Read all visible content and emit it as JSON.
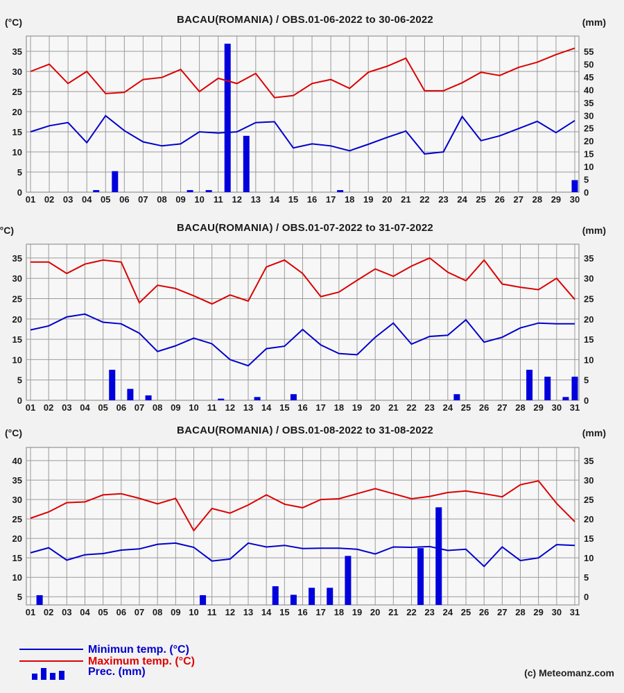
{
  "page": {
    "background": "#f2f2f2",
    "credit": "(c) Meteomanz.com"
  },
  "colors": {
    "max_temp": "#dd0000",
    "min_temp": "#0000cc",
    "precip": "#0000dd",
    "grid": "#9a9a9a",
    "plot_border": "#808080",
    "plot_bg": "#f7f7f7",
    "text": "#1a1a1a"
  },
  "legend": {
    "items": [
      {
        "label": "Minimun temp. (°C)",
        "color": "#0000cc",
        "sample": "line"
      },
      {
        "label": "Maximum temp. (°C)",
        "color": "#dd0000",
        "sample": "line"
      },
      {
        "label": "Prec. (mm)",
        "color": "#0000dd",
        "sample": "bars"
      }
    ]
  },
  "chart_data": [
    {
      "type": "line+bar",
      "title": "BACAU(ROMANIA) / OBS.01-06-2022 to 30-06-2022",
      "unit_left": "(°C)",
      "unit_right": "(mm)",
      "x_tick_labels": [
        "01",
        "02",
        "03",
        "04",
        "05",
        "06",
        "07",
        "08",
        "09",
        "10",
        "11",
        "12",
        "13",
        "14",
        "15",
        "16",
        "17",
        "18",
        "19",
        "20",
        "21",
        "22",
        "23",
        "24",
        "25",
        "26",
        "27",
        "28",
        "29",
        "30"
      ],
      "left_axis": {
        "ticks": [
          0,
          5,
          10,
          15,
          20,
          25,
          30,
          35
        ],
        "min": 0,
        "max": 38.8
      },
      "right_axis": {
        "ticks": [
          0,
          5,
          10,
          15,
          20,
          25,
          30,
          35,
          40,
          45,
          50,
          55
        ],
        "scale": 0.63636,
        "offset": 0
      },
      "series": [
        {
          "name": "Maximum temp. (°C)",
          "type": "line",
          "color": "#dd0000",
          "values": [
            30,
            31.8,
            27,
            30,
            24.5,
            24.8,
            28,
            28.5,
            30.5,
            25,
            28.3,
            27,
            29.5,
            23.5,
            24,
            27,
            28,
            25.8,
            29.8,
            31.3,
            33.3,
            25.2,
            25.2,
            27.2,
            29.8,
            29,
            31,
            32.3,
            34.2,
            35.8
          ]
        },
        {
          "name": "Minimun temp. (°C)",
          "type": "line",
          "color": "#0000cc",
          "values": [
            15,
            16.5,
            17.3,
            12.3,
            19,
            15.3,
            12.5,
            11.5,
            12,
            15,
            14.7,
            15,
            17.3,
            17.5,
            11,
            12,
            11.5,
            10.3,
            11.9,
            13.6,
            15.2,
            9.5,
            10,
            18.8,
            12.8,
            14,
            15.8,
            17.6,
            14.8,
            17.8
          ]
        },
        {
          "name": "Prec. (mm)",
          "type": "bar",
          "axis": "right",
          "color": "#0000dd",
          "values": [
            0,
            0,
            0,
            0.8,
            8.2,
            0,
            0,
            0,
            0.8,
            0.8,
            58,
            22,
            0,
            0,
            0,
            0,
            0.8,
            0,
            0,
            0,
            0,
            0,
            0,
            0,
            0,
            0,
            0,
            0,
            0,
            4.7
          ]
        }
      ]
    },
    {
      "type": "line+bar",
      "title": "BACAU(ROMANIA) / OBS.01-07-2022 to 31-07-2022",
      "unit_left": "(°C)",
      "unit_right": "(mm)",
      "x_tick_labels": [
        "01",
        "02",
        "03",
        "04",
        "05",
        "06",
        "07",
        "08",
        "09",
        "10",
        "11",
        "12",
        "13",
        "14",
        "15",
        "16",
        "17",
        "18",
        "19",
        "20",
        "21",
        "22",
        "23",
        "24",
        "25",
        "26",
        "27",
        "28",
        "29",
        "30",
        "31"
      ],
      "left_axis": {
        "ticks": [
          0,
          5,
          10,
          15,
          20,
          25,
          30,
          35
        ],
        "min": 0,
        "max": 38.4
      },
      "right_axis": {
        "ticks": [
          0,
          5,
          10,
          15,
          20,
          25,
          30,
          35
        ],
        "scale": 1,
        "offset": 0
      },
      "series": [
        {
          "name": "Maximum temp. (°C)",
          "type": "line",
          "color": "#dd0000",
          "values": [
            34,
            34,
            31.2,
            33.5,
            34.5,
            34,
            24,
            28.3,
            27.5,
            25.7,
            23.7,
            25.9,
            24.4,
            32.8,
            34.5,
            31.2,
            25.5,
            26.6,
            29.5,
            32.3,
            30.5,
            33,
            35,
            31.5,
            29.4,
            34.5,
            28.6,
            27.8,
            27.2,
            30,
            24.8
          ]
        },
        {
          "name": "Minimun temp. (°C)",
          "type": "line",
          "color": "#0000cc",
          "values": [
            17.3,
            18.3,
            20.5,
            21.2,
            19.2,
            18.8,
            16.5,
            12,
            13.4,
            15.3,
            13.9,
            10,
            8.5,
            12.7,
            13.3,
            17.4,
            13.6,
            11.5,
            11.2,
            15.5,
            19,
            13.8,
            15.7,
            16,
            19.8,
            14.3,
            15.5,
            17.8,
            19,
            18.8,
            18.8
          ]
        },
        {
          "name": "Prec. (mm)",
          "type": "bar",
          "axis": "right",
          "color": "#0000dd",
          "values": [
            0,
            0,
            0,
            0,
            7.5,
            2.8,
            1.2,
            0,
            0,
            0,
            0.4,
            0,
            0.8,
            0,
            1.5,
            0,
            0,
            0,
            0,
            0,
            0,
            0,
            0,
            1.5,
            0,
            0,
            0,
            7.5,
            5.8,
            0.8,
            5.8
          ]
        }
      ]
    },
    {
      "type": "line+bar",
      "title": "BACAU(ROMANIA) / OBS.01-08-2022 to 31-08-2022",
      "unit_left": "(°C)",
      "unit_right": "(mm)",
      "x_tick_labels": [
        "01",
        "02",
        "03",
        "04",
        "05",
        "06",
        "07",
        "08",
        "09",
        "10",
        "11",
        "12",
        "13",
        "14",
        "15",
        "16",
        "17",
        "18",
        "19",
        "20",
        "21",
        "22",
        "23",
        "24",
        "25",
        "26",
        "27",
        "28",
        "29",
        "30",
        "31"
      ],
      "left_axis": {
        "ticks": [
          5,
          10,
          15,
          20,
          25,
          30,
          35,
          40
        ],
        "min": 2.9,
        "max": 43.4
      },
      "right_axis": {
        "ticks": [
          0,
          5,
          10,
          15,
          20,
          25,
          30,
          35
        ],
        "scale": 1,
        "offset": 5
      },
      "series": [
        {
          "name": "Maximum temp. (°C)",
          "type": "line",
          "color": "#dd0000",
          "values": [
            25.2,
            26.8,
            29.2,
            29.4,
            31.2,
            31.5,
            30.3,
            28.9,
            30.3,
            22,
            27.7,
            26.5,
            28.6,
            31.2,
            28.8,
            27.9,
            30,
            30.2,
            31.5,
            32.8,
            31.5,
            30.2,
            30.8,
            31.8,
            32.2,
            31.5,
            30.7,
            33.8,
            34.8,
            29,
            24.3
          ]
        },
        {
          "name": "Minimun temp. (°C)",
          "type": "line",
          "color": "#0000cc",
          "values": [
            16.3,
            17.6,
            14.4,
            15.8,
            16.1,
            17,
            17.3,
            18.5,
            18.8,
            17.7,
            14.2,
            14.7,
            18.8,
            17.8,
            18.2,
            17.4,
            17.5,
            17.5,
            17.2,
            16,
            17.8,
            17.7,
            17.9,
            16.9,
            17.2,
            12.8,
            17.8,
            14.3,
            15,
            18.4,
            18.2
          ]
        },
        {
          "name": "Prec. (mm)",
          "type": "bar",
          "axis": "right",
          "color": "#0000dd",
          "values": [
            0.4,
            0,
            0,
            0,
            0,
            0,
            0,
            0,
            0,
            0.4,
            0,
            0,
            0,
            2.7,
            0.5,
            2.3,
            2.3,
            10.5,
            0,
            0,
            0,
            12.5,
            23,
            0,
            0,
            0,
            0,
            0,
            0,
            0,
            0
          ]
        }
      ]
    }
  ]
}
